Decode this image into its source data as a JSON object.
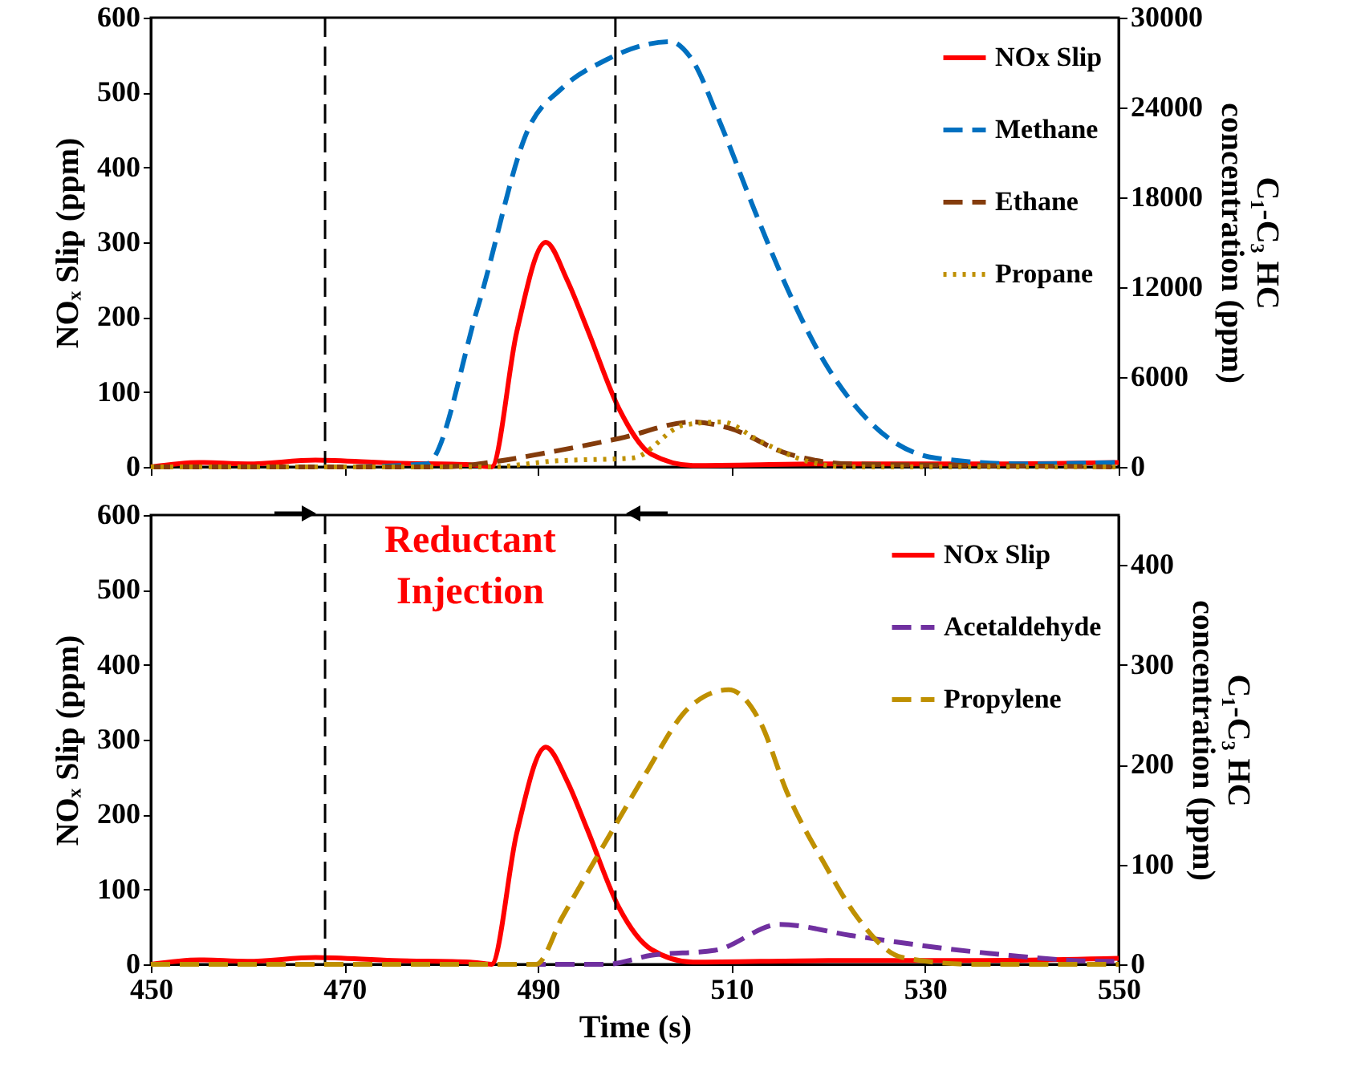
{
  "chart_data": [
    {
      "type": "line",
      "ylabel": "NOₓ Slip (ppm)",
      "y2label": "C₁-C₃ HC\nconcentration (ppm)",
      "xlim": [
        450,
        550
      ],
      "xticks": [
        450,
        470,
        490,
        510,
        530,
        550
      ],
      "ylim": [
        0,
        600
      ],
      "yticks": [
        0,
        100,
        200,
        300,
        400,
        500,
        600
      ],
      "y2lim": [
        0,
        30000
      ],
      "y2ticks": [
        0,
        6000,
        12000,
        18000,
        24000,
        30000
      ],
      "tick_labels": "y",
      "grid": false,
      "legend": "top right",
      "ref_lines": [
        {
          "axis": "x",
          "value": 468,
          "line_style": "dashed",
          "color": "#000000"
        },
        {
          "axis": "x",
          "value": 498,
          "line_style": "dashed",
          "color": "#000000"
        }
      ],
      "series": [
        {
          "name": "NOx Slip",
          "color": "#ff0000",
          "line_style": "solid",
          "x": [
            450,
            455,
            460,
            467,
            475,
            483,
            485.2,
            487.8,
            490.8,
            493,
            495.1,
            498.4,
            501.7,
            506,
            520,
            535,
            550
          ],
          "values": [
            0,
            6,
            4,
            9,
            5,
            3,
            0,
            180,
            300,
            250,
            184,
            77,
            17,
            2,
            4,
            4,
            6
          ]
        },
        {
          "name": "Methane",
          "color": "#0070c0",
          "line_style": "dashed",
          "axis": "y2",
          "x": [
            450,
            470,
            478.5,
            483.8,
            489.1,
            492.5,
            497.1,
            498.4,
            503.7,
            505.7,
            509,
            512.4,
            515.7,
            519.7,
            524.3,
            531,
            540,
            550
          ],
          "values": [
            0,
            0,
            200,
            10700,
            22700,
            25300,
            27200,
            27600,
            28400,
            27400,
            22700,
            17100,
            12000,
            6900,
            3000,
            600,
            200,
            300
          ]
        },
        {
          "name": "Ethane",
          "color": "#843c0c",
          "line_style": "dashed",
          "axis": "y2",
          "x": [
            450,
            480,
            485,
            490.5,
            498.4,
            506,
            509.7,
            515.7,
            522.3,
            535,
            550
          ],
          "values": [
            0,
            0,
            300,
            900,
            1900,
            3000,
            2600,
            900,
            200,
            100,
            0
          ]
        },
        {
          "name": "Propane",
          "color": "#bf9000",
          "line_style": "dotted",
          "axis": "y2",
          "x": [
            450,
            485,
            491.8,
            499.8,
            505.1,
            509,
            513,
            517.7,
            522,
            550
          ],
          "values": [
            0,
            0,
            400,
            600,
            2800,
            3000,
            1700,
            400,
            0,
            0
          ]
        }
      ]
    },
    {
      "type": "line",
      "xlabel": "Time (s)",
      "ylabel": "NOₓ Slip (ppm)",
      "y2label": "C₁-C₃ HC\nconcentration (ppm)",
      "xlim": [
        450,
        550
      ],
      "xticks": [
        450,
        470,
        490,
        510,
        530,
        550
      ],
      "ylim": [
        0,
        600
      ],
      "yticks": [
        0,
        100,
        200,
        300,
        400,
        500,
        600
      ],
      "y2lim": [
        0,
        450
      ],
      "y2ticks": [
        0,
        100,
        200,
        300,
        400
      ],
      "grid": false,
      "legend": "top right",
      "annotations": [
        "Reductant\nInjection"
      ],
      "ref_lines": [
        {
          "axis": "x",
          "value": 468,
          "line_style": "dashed",
          "color": "#000000"
        },
        {
          "axis": "x",
          "value": 498,
          "line_style": "dashed",
          "color": "#000000"
        }
      ],
      "series": [
        {
          "name": "NOx Slip",
          "color": "#ff0000",
          "line_style": "solid",
          "x": [
            450,
            455,
            460,
            467,
            475,
            483,
            485.2,
            487.8,
            490.8,
            493,
            495.1,
            498.4,
            501.7,
            506,
            520,
            535,
            550
          ],
          "values": [
            0,
            6,
            4,
            9,
            5,
            3,
            0,
            175,
            290,
            245,
            180,
            75,
            20,
            3,
            5,
            5,
            8
          ]
        },
        {
          "name": "Acetaldehyde",
          "color": "#7030a0",
          "line_style": "dashed",
          "axis": "y2",
          "x": [
            450,
            497,
            501.7,
            508.3,
            515,
            522.3,
            535.6,
            548.9,
            550
          ],
          "values": [
            0,
            0,
            9,
            14,
            40,
            29,
            12,
            3,
            3
          ]
        },
        {
          "name": "Propylene",
          "color": "#bf9000",
          "line_style": "dashed",
          "axis": "y2",
          "x": [
            450,
            489.8,
            492.5,
            498.4,
            501,
            505.7,
            509.7,
            513,
            515.7,
            519.7,
            523,
            527.6,
            535,
            550
          ],
          "values": [
            0,
            0,
            47,
            146,
            189,
            258,
            275,
            242,
            173,
            99,
            47,
            7,
            0,
            0
          ]
        }
      ]
    }
  ]
}
